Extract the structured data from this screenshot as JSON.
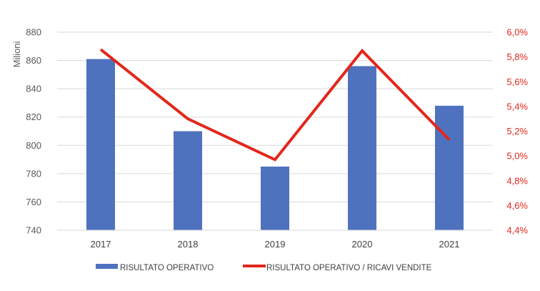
{
  "chart_data": {
    "type": "bar",
    "categories": [
      "2017",
      "2018",
      "2019",
      "2020",
      "2021"
    ],
    "ylabel": "Milioni",
    "ylim": [
      740,
      880
    ],
    "yticks": [
      "740",
      "760",
      "780",
      "800",
      "820",
      "840",
      "860",
      "880"
    ],
    "y2lim": [
      4.4,
      6.0
    ],
    "y2ticks": [
      "4,4%",
      "4,6%",
      "4,8%",
      "5,0%",
      "5,2%",
      "5,4%",
      "5,6%",
      "5,8%",
      "6,0%"
    ],
    "grid": true,
    "legend_position": "bottom",
    "series": [
      {
        "name": "RISULTATO OPERATIVO",
        "type": "bar",
        "axis": "left",
        "color": "#4f72be",
        "values": [
          861,
          810,
          785,
          856,
          828
        ]
      },
      {
        "name": "RISULTATO OPERATIVO / RICAVI VENDITE",
        "type": "line",
        "axis": "right",
        "color": "#e3261b",
        "values": [
          5.86,
          5.3,
          4.97,
          5.85,
          5.13
        ]
      }
    ]
  }
}
